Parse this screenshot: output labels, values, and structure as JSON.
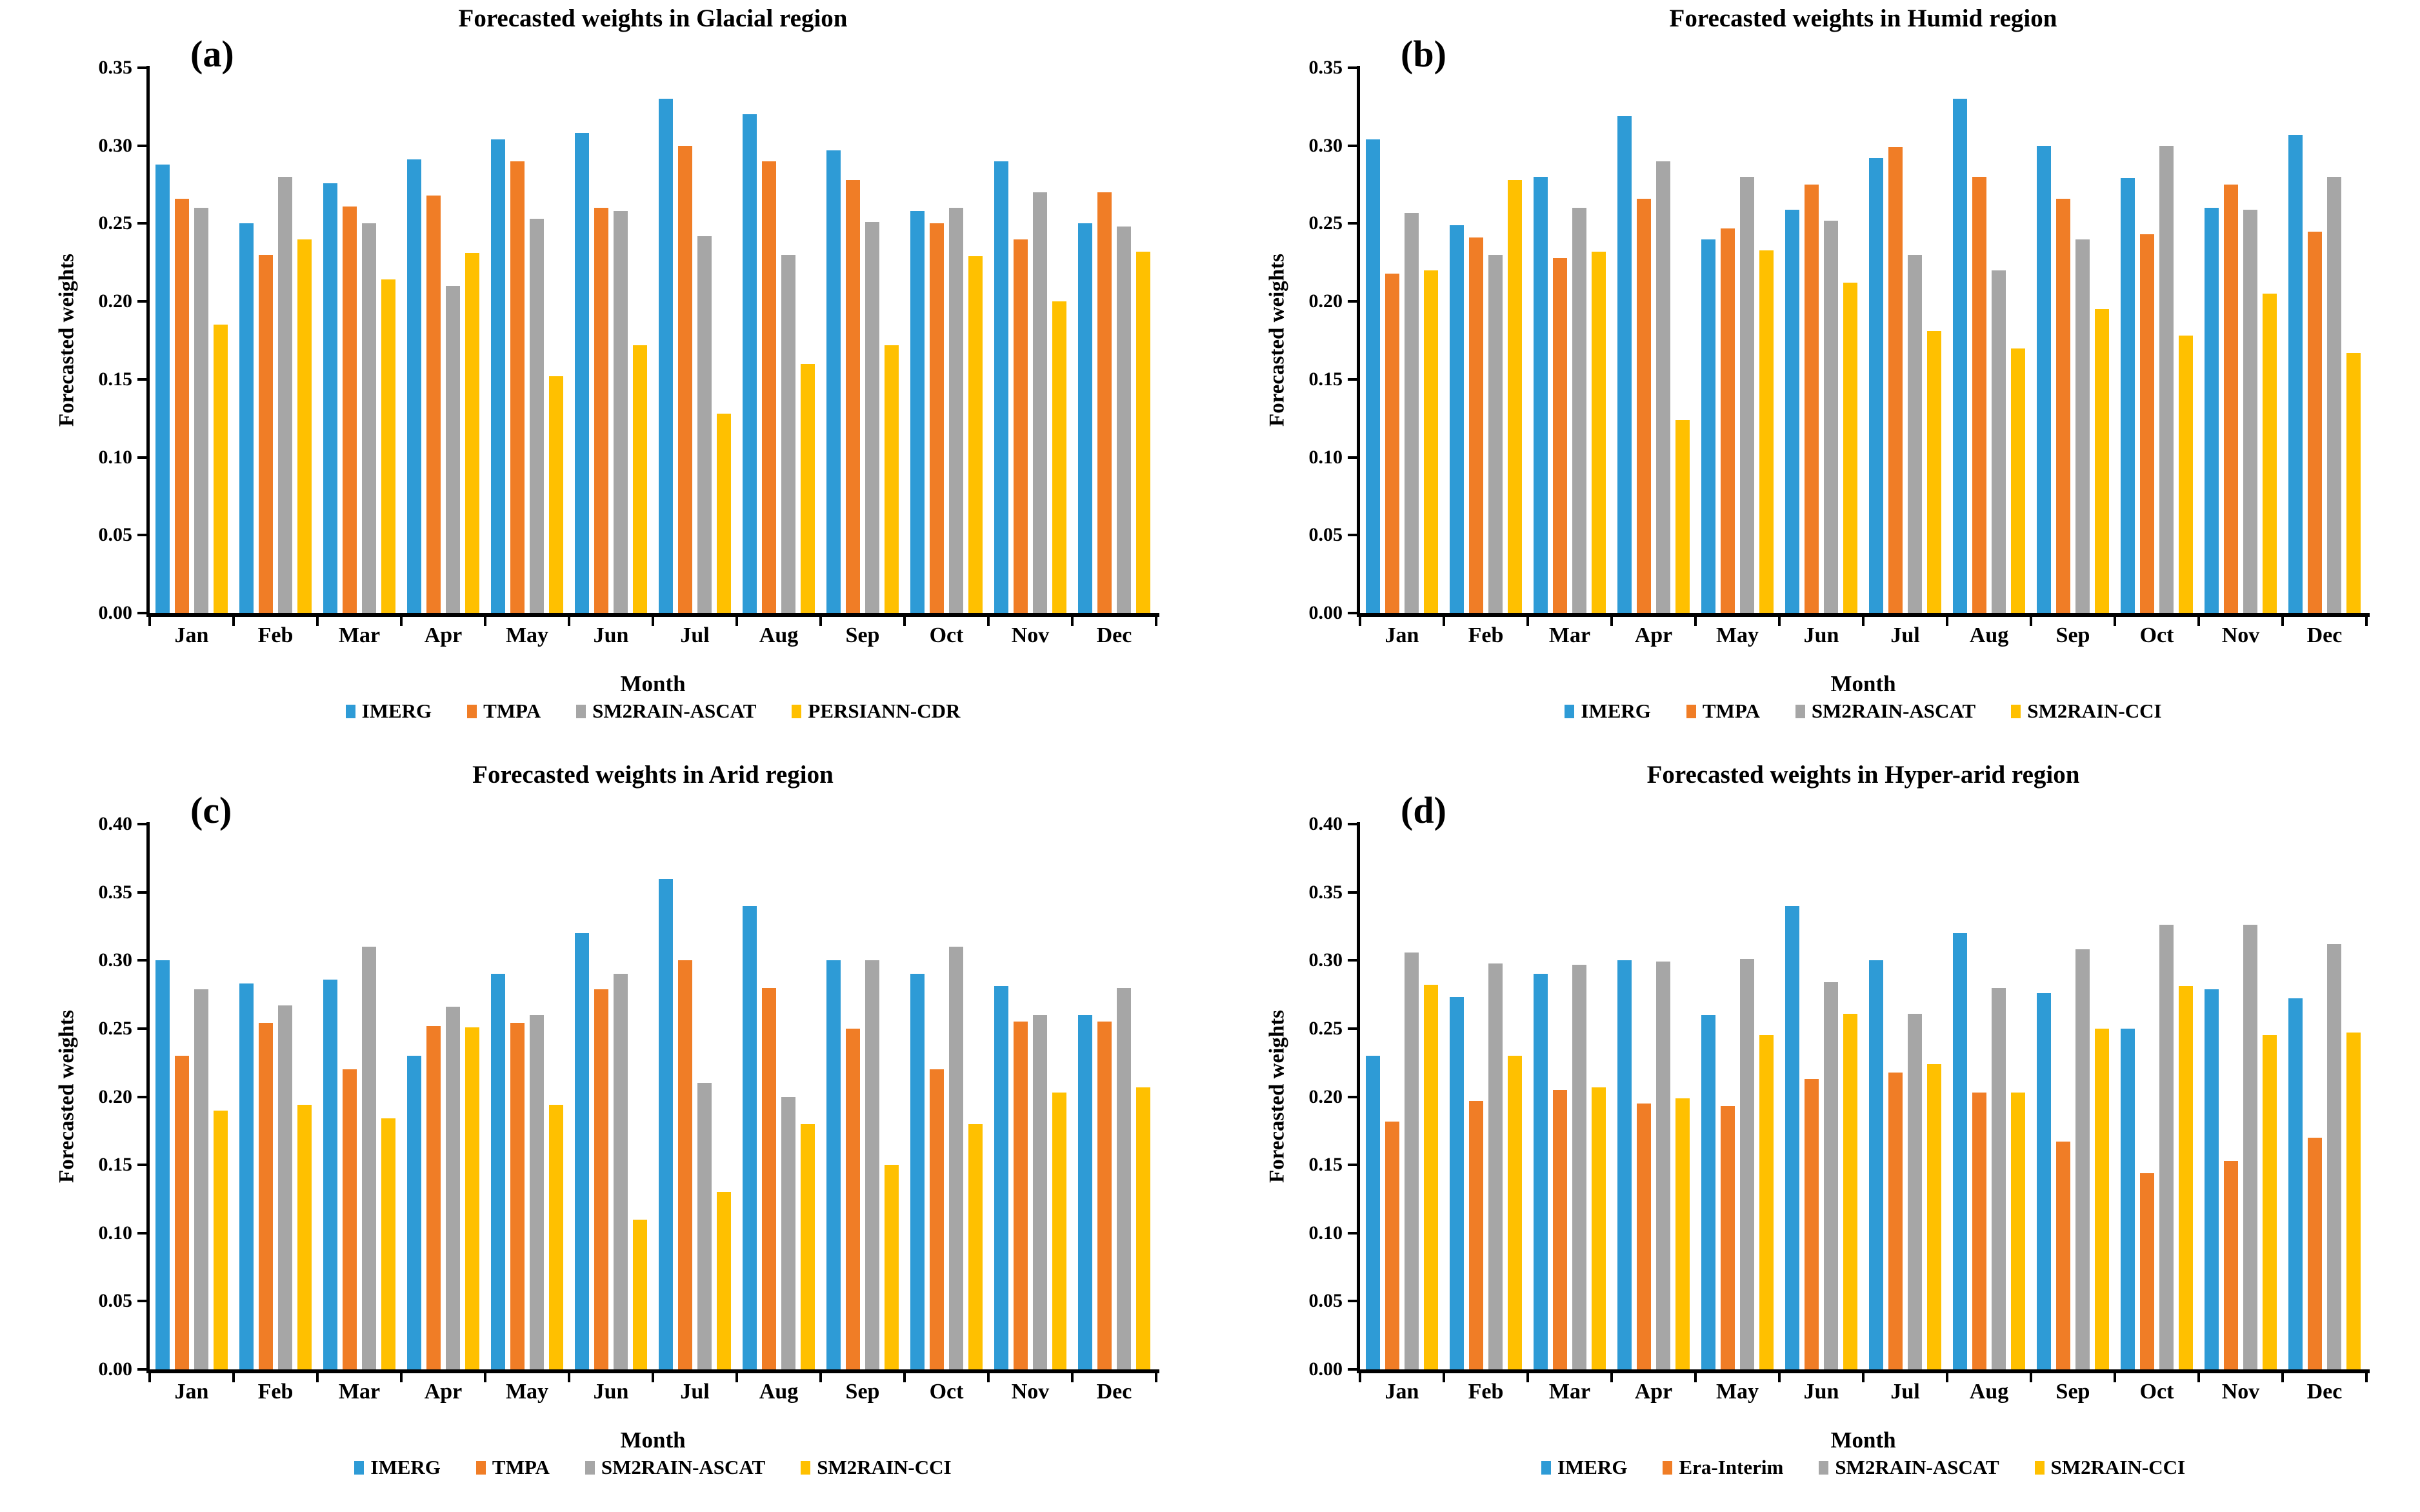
{
  "chart_data": [
    {
      "type": "bar",
      "panel_label": "(a)",
      "title": "Forecasted weights in Glacial region",
      "xlabel": "Month",
      "ylabel": "Forecasted weights",
      "ylim": [
        0,
        0.35
      ],
      "yticks": [
        "0.00",
        "0.05",
        "0.10",
        "0.15",
        "0.20",
        "0.25",
        "0.30",
        "0.35"
      ],
      "grid": false,
      "legend_position": "bottom",
      "categories": [
        "Jan",
        "Feb",
        "Mar",
        "Apr",
        "May",
        "Jun",
        "Jul",
        "Aug",
        "Sep",
        "Oct",
        "Nov",
        "Dec"
      ],
      "series": [
        {
          "name": "IMERG",
          "color": "#2E9BD6",
          "values": [
            0.288,
            0.25,
            0.276,
            0.291,
            0.304,
            0.308,
            0.33,
            0.32,
            0.297,
            0.258,
            0.29,
            0.25
          ]
        },
        {
          "name": "TMPA",
          "color": "#F07D26",
          "values": [
            0.266,
            0.23,
            0.261,
            0.268,
            0.29,
            0.26,
            0.3,
            0.29,
            0.278,
            0.25,
            0.24,
            0.27
          ]
        },
        {
          "name": "SM2RAIN-ASCAT",
          "color": "#A6A6A6",
          "values": [
            0.26,
            0.28,
            0.25,
            0.21,
            0.253,
            0.258,
            0.242,
            0.23,
            0.251,
            0.26,
            0.27,
            0.248
          ]
        },
        {
          "name": "PERSIANN-CDR",
          "color": "#FFC000",
          "values": [
            0.185,
            0.24,
            0.214,
            0.231,
            0.152,
            0.172,
            0.128,
            0.16,
            0.172,
            0.229,
            0.2,
            0.232
          ]
        }
      ]
    },
    {
      "type": "bar",
      "panel_label": "(b)",
      "title": "Forecasted weights in Humid region",
      "xlabel": "Month",
      "ylabel": "Forecasted weights",
      "ylim": [
        0,
        0.35
      ],
      "yticks": [
        "0.00",
        "0.05",
        "0.10",
        "0.15",
        "0.20",
        "0.25",
        "0.30",
        "0.35"
      ],
      "grid": false,
      "legend_position": "bottom",
      "categories": [
        "Jan",
        "Feb",
        "Mar",
        "Apr",
        "May",
        "Jun",
        "Jul",
        "Aug",
        "Sep",
        "Oct",
        "Nov",
        "Dec"
      ],
      "series": [
        {
          "name": "IMERG",
          "color": "#2E9BD6",
          "values": [
            0.304,
            0.249,
            0.28,
            0.319,
            0.24,
            0.259,
            0.292,
            0.33,
            0.3,
            0.279,
            0.26,
            0.307
          ]
        },
        {
          "name": "TMPA",
          "color": "#F07D26",
          "values": [
            0.218,
            0.241,
            0.228,
            0.266,
            0.247,
            0.275,
            0.299,
            0.28,
            0.266,
            0.243,
            0.275,
            0.245
          ]
        },
        {
          "name": "SM2RAIN-ASCAT",
          "color": "#A6A6A6",
          "values": [
            0.257,
            0.23,
            0.26,
            0.29,
            0.28,
            0.252,
            0.23,
            0.22,
            0.24,
            0.3,
            0.259,
            0.28
          ]
        },
        {
          "name": "SM2RAIN-CCI",
          "color": "#FFC000",
          "values": [
            0.22,
            0.278,
            0.232,
            0.124,
            0.233,
            0.212,
            0.181,
            0.17,
            0.195,
            0.178,
            0.205,
            0.167
          ]
        }
      ]
    },
    {
      "type": "bar",
      "panel_label": "(c)",
      "title": "Forecasted weights in Arid region",
      "xlabel": "Month",
      "ylabel": "Forecasted weights",
      "ylim": [
        0,
        0.4
      ],
      "yticks": [
        "0.00",
        "0.05",
        "0.10",
        "0.15",
        "0.20",
        "0.25",
        "0.30",
        "0.35",
        "0.40"
      ],
      "grid": false,
      "legend_position": "bottom",
      "categories": [
        "Jan",
        "Feb",
        "Mar",
        "Apr",
        "May",
        "Jun",
        "Jul",
        "Aug",
        "Sep",
        "Oct",
        "Nov",
        "Dec"
      ],
      "series": [
        {
          "name": "IMERG",
          "color": "#2E9BD6",
          "values": [
            0.3,
            0.283,
            0.286,
            0.23,
            0.29,
            0.32,
            0.36,
            0.34,
            0.3,
            0.29,
            0.281,
            0.26
          ]
        },
        {
          "name": "TMPA",
          "color": "#F07D26",
          "values": [
            0.23,
            0.254,
            0.22,
            0.252,
            0.254,
            0.279,
            0.3,
            0.28,
            0.25,
            0.22,
            0.255,
            0.255
          ]
        },
        {
          "name": "SM2RAIN-ASCAT",
          "color": "#A6A6A6",
          "values": [
            0.279,
            0.267,
            0.31,
            0.266,
            0.26,
            0.29,
            0.21,
            0.2,
            0.3,
            0.31,
            0.26,
            0.28
          ]
        },
        {
          "name": "SM2RAIN-CCI",
          "color": "#FFC000",
          "values": [
            0.19,
            0.194,
            0.184,
            0.251,
            0.194,
            0.11,
            0.13,
            0.18,
            0.15,
            0.18,
            0.203,
            0.207
          ]
        }
      ]
    },
    {
      "type": "bar",
      "panel_label": "(d)",
      "title": "Forecasted weights in Hyper-arid region",
      "xlabel": "Month",
      "ylabel": "Forecasted weights",
      "ylim": [
        0,
        0.4
      ],
      "yticks": [
        "0.00",
        "0.05",
        "0.10",
        "0.15",
        "0.20",
        "0.25",
        "0.30",
        "0.35",
        "0.40"
      ],
      "grid": false,
      "legend_position": "bottom",
      "categories": [
        "Jan",
        "Feb",
        "Mar",
        "Apr",
        "May",
        "Jun",
        "Jul",
        "Aug",
        "Sep",
        "Oct",
        "Nov",
        "Dec"
      ],
      "series": [
        {
          "name": "IMERG",
          "color": "#2E9BD6",
          "values": [
            0.23,
            0.273,
            0.29,
            0.3,
            0.26,
            0.34,
            0.3,
            0.32,
            0.276,
            0.25,
            0.279,
            0.272
          ]
        },
        {
          "name": "Era-Interim",
          "color": "#F07D26",
          "values": [
            0.182,
            0.197,
            0.205,
            0.195,
            0.193,
            0.213,
            0.218,
            0.203,
            0.167,
            0.144,
            0.153,
            0.17
          ]
        },
        {
          "name": "SM2RAIN-ASCAT",
          "color": "#A6A6A6",
          "values": [
            0.306,
            0.298,
            0.297,
            0.299,
            0.301,
            0.284,
            0.261,
            0.28,
            0.308,
            0.326,
            0.326,
            0.312
          ]
        },
        {
          "name": "SM2RAIN-CCI",
          "color": "#FFC000",
          "values": [
            0.282,
            0.23,
            0.207,
            0.199,
            0.245,
            0.261,
            0.224,
            0.203,
            0.25,
            0.281,
            0.245,
            0.247
          ]
        }
      ]
    }
  ]
}
